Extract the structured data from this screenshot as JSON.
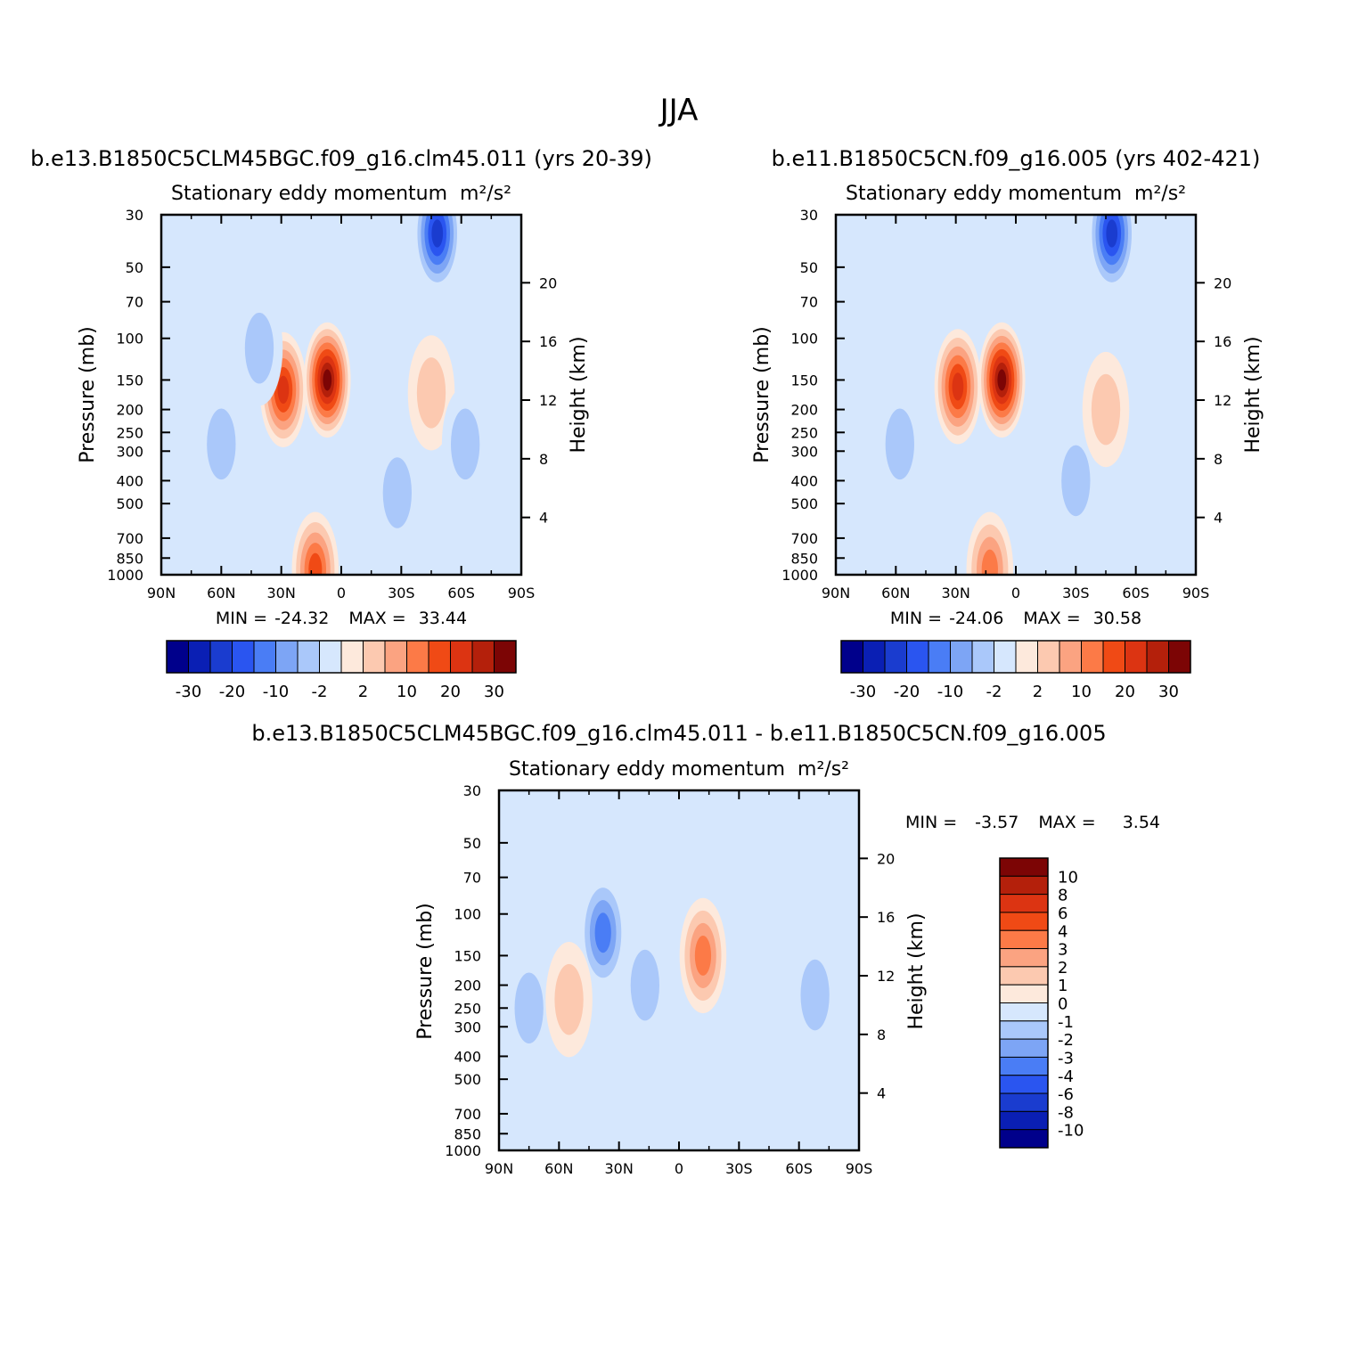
{
  "figure": {
    "title": "JJA"
  },
  "pressure_ticks": [
    "30",
    "50",
    "70",
    "100",
    "150",
    "200",
    "250",
    "300",
    "400",
    "500",
    "700",
    "850",
    "1000"
  ],
  "height_ticks": [
    "20",
    "16",
    "12",
    "8",
    "4"
  ],
  "lat_ticks": [
    "90N",
    "60N",
    "30N",
    "0",
    "30S",
    "60S",
    "90S"
  ],
  "chart_data": [
    {
      "type": "heatmap",
      "id": "case1",
      "case_title": "b.e13.B1850C5CLM45BGC.f09_g16.clm45.011 (yrs 20-39)",
      "subtitle": "Stationary eddy momentum",
      "units": "m²/s²",
      "ylabel": "Pressure (mb)",
      "ylabel_right": "Height (km)",
      "min_label": "MIN =",
      "min": "-24.32",
      "max_label": "MAX =",
      "max": "33.44",
      "x_range": [
        90,
        -90
      ],
      "y_range_mb": [
        30,
        1000
      ],
      "colorbar_levels": [
        "-30",
        "-20",
        "-10",
        "-2",
        "2",
        "10",
        "20",
        "30"
      ],
      "features": [
        {
          "lat": 7,
          "p": 150,
          "value": 33
        },
        {
          "lat": 29,
          "p": 165,
          "value": 20
        },
        {
          "lat": -48,
          "p": 36,
          "value": -24
        },
        {
          "lat": 13,
          "p": 950,
          "value": 18
        },
        {
          "lat": 60,
          "p": 280,
          "value": -4
        },
        {
          "lat": 41,
          "p": 110,
          "value": -4
        },
        {
          "lat": -28,
          "p": 450,
          "value": -4
        },
        {
          "lat": -45,
          "p": 170,
          "value": 3
        },
        {
          "lat": -62,
          "p": 280,
          "value": -4
        }
      ]
    },
    {
      "type": "heatmap",
      "id": "case2",
      "case_title": "b.e11.B1850C5CN.f09_g16.005 (yrs 402-421)",
      "subtitle": "Stationary eddy momentum",
      "units": "m²/s²",
      "ylabel": "Pressure (mb)",
      "ylabel_right": "Height (km)",
      "min_label": "MIN =",
      "min": "-24.06",
      "max_label": "MAX =",
      "max": "30.58",
      "x_range": [
        90,
        -90
      ],
      "y_range_mb": [
        30,
        1000
      ],
      "colorbar_levels": [
        "-30",
        "-20",
        "-10",
        "-2",
        "2",
        "10",
        "20",
        "30"
      ],
      "features": [
        {
          "lat": 7,
          "p": 150,
          "value": 30
        },
        {
          "lat": 29,
          "p": 160,
          "value": 20
        },
        {
          "lat": -48,
          "p": 36,
          "value": -24
        },
        {
          "lat": 13,
          "p": 950,
          "value": 14
        },
        {
          "lat": 58,
          "p": 280,
          "value": -4
        },
        {
          "lat": -30,
          "p": 400,
          "value": -4
        },
        {
          "lat": -45,
          "p": 200,
          "value": 3
        }
      ]
    },
    {
      "type": "heatmap",
      "id": "diff",
      "case_title": "b.e13.B1850C5CLM45BGC.f09_g16.clm45.011 - b.e11.B1850C5CN.f09_g16.005",
      "subtitle": "Stationary eddy momentum",
      "units": "m²/s²",
      "ylabel": "Pressure (mb)",
      "ylabel_right": "Height (km)",
      "min_label": "MIN =",
      "min": "-3.57",
      "max_label": "MAX =",
      "max": "3.54",
      "x_range": [
        90,
        -90
      ],
      "y_range_mb": [
        30,
        1000
      ],
      "colorbar_levels": [
        "10",
        "8",
        "6",
        "4",
        "3",
        "2",
        "1",
        "0",
        "-1",
        "-2",
        "-3",
        "-4",
        "-6",
        "-8",
        "-10"
      ],
      "features": [
        {
          "lat": 38,
          "p": 120,
          "value": -3.5
        },
        {
          "lat": -12,
          "p": 150,
          "value": 3.5
        },
        {
          "lat": 75,
          "p": 250,
          "value": -1.5
        },
        {
          "lat": 55,
          "p": 230,
          "value": 1.5
        },
        {
          "lat": -68,
          "p": 220,
          "value": -1.5
        },
        {
          "lat": 17,
          "p": 200,
          "value": -1.5
        }
      ]
    }
  ],
  "colors": {
    "diverging": [
      "#00008b",
      "#0a1fb4",
      "#1a3ccf",
      "#2a55f0",
      "#4a7df5",
      "#7da5f5",
      "#aac8fa",
      "#d6e7fd",
      "#fde9dc",
      "#fcc9b0",
      "#fba381",
      "#fc7a47",
      "#f04a15",
      "#dc3412",
      "#b4200b",
      "#7c0505"
    ]
  }
}
